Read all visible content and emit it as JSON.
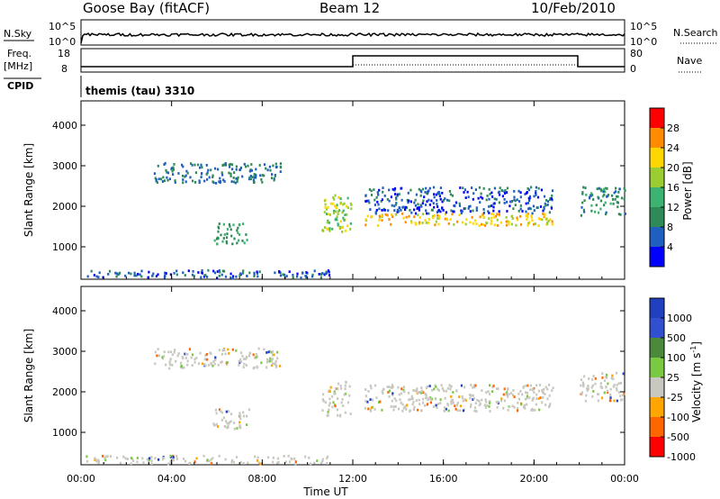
{
  "header": {
    "station": "Goose Bay (fitACF)",
    "beam": "Beam 12",
    "date": "10/Feb/2010"
  },
  "strip": {
    "nsky_label": "N.Sky",
    "nsky_tick_hi": "10^5",
    "nsky_tick_lo": "10^0",
    "nsearch_label": "N.Search",
    "freq_label": "Freq.",
    "freq_unit": "[MHz]",
    "freq_tick_hi": "18",
    "freq_tick_lo": "8",
    "nave_label": "Nave",
    "nave_tick_hi": "80",
    "nave_tick_lo": "0",
    "cpid_label": "CPID",
    "cpid_value": "themis (tau) 3310"
  },
  "chart_data": [
    {
      "type": "heatmap",
      "title": "",
      "ylabel": "Slant Range [km]",
      "xlabel": "Time UT",
      "x_ticks": [
        "00:00",
        "04:00",
        "08:00",
        "12:00",
        "16:00",
        "20:00",
        "00:00"
      ],
      "y_ticks": [
        "1000",
        "2000",
        "3000",
        "4000"
      ],
      "ylim": [
        200,
        4600
      ],
      "xlim_hours": [
        0,
        24
      ],
      "colorbar": {
        "label": "Power [dB]",
        "ticks": [
          "4",
          "8",
          "12",
          "16",
          "20",
          "24",
          "28"
        ]
      },
      "echo_regions": [
        {
          "t": [
            0.2,
            11.0
          ],
          "range": [
            250,
            450
          ],
          "power_db": 6
        },
        {
          "t": [
            3.2,
            8.8
          ],
          "range": [
            2600,
            3100
          ],
          "power_db": 8
        },
        {
          "t": [
            5.8,
            7.4
          ],
          "range": [
            1100,
            1600
          ],
          "power_db": 12
        },
        {
          "t": [
            10.6,
            11.9
          ],
          "range": [
            1400,
            2300
          ],
          "power_db": 18
        },
        {
          "t": [
            12.5,
            20.8
          ],
          "range": [
            1550,
            1850
          ],
          "power_db": 22
        },
        {
          "t": [
            12.5,
            20.8
          ],
          "range": [
            1850,
            2500
          ],
          "power_db": 6
        },
        {
          "t": [
            22.0,
            24.0
          ],
          "range": [
            1800,
            2500
          ],
          "power_db": 10
        }
      ]
    },
    {
      "type": "heatmap",
      "title": "",
      "ylabel": "Slant Range [km]",
      "xlabel": "Time UT",
      "x_ticks": [
        "00:00",
        "04:00",
        "08:00",
        "12:00",
        "16:00",
        "20:00",
        "00:00"
      ],
      "y_ticks": [
        "1000",
        "2000",
        "3000",
        "4000"
      ],
      "ylim": [
        200,
        4600
      ],
      "xlim_hours": [
        0,
        24
      ],
      "colorbar": {
        "label": "Velocity [m s^-1]",
        "ticks": [
          "1000",
          "500",
          "100",
          "25",
          "-25",
          "-100",
          "-500",
          "-1000"
        ]
      },
      "echo_regions": [
        {
          "t": [
            0.2,
            11.0
          ],
          "range": [
            250,
            450
          ],
          "velocity": 50
        },
        {
          "t": [
            3.2,
            8.8
          ],
          "range": [
            2600,
            3100
          ],
          "velocity": 0
        },
        {
          "t": [
            5.8,
            7.4
          ],
          "range": [
            1100,
            1600
          ],
          "velocity": 0
        },
        {
          "t": [
            10.6,
            11.9
          ],
          "range": [
            1400,
            2300
          ],
          "velocity": 0
        },
        {
          "t": [
            12.5,
            20.8
          ],
          "range": [
            1550,
            2200
          ],
          "velocity": 0
        },
        {
          "t": [
            22.0,
            24.0
          ],
          "range": [
            1800,
            2500
          ],
          "velocity": 0
        }
      ]
    }
  ]
}
